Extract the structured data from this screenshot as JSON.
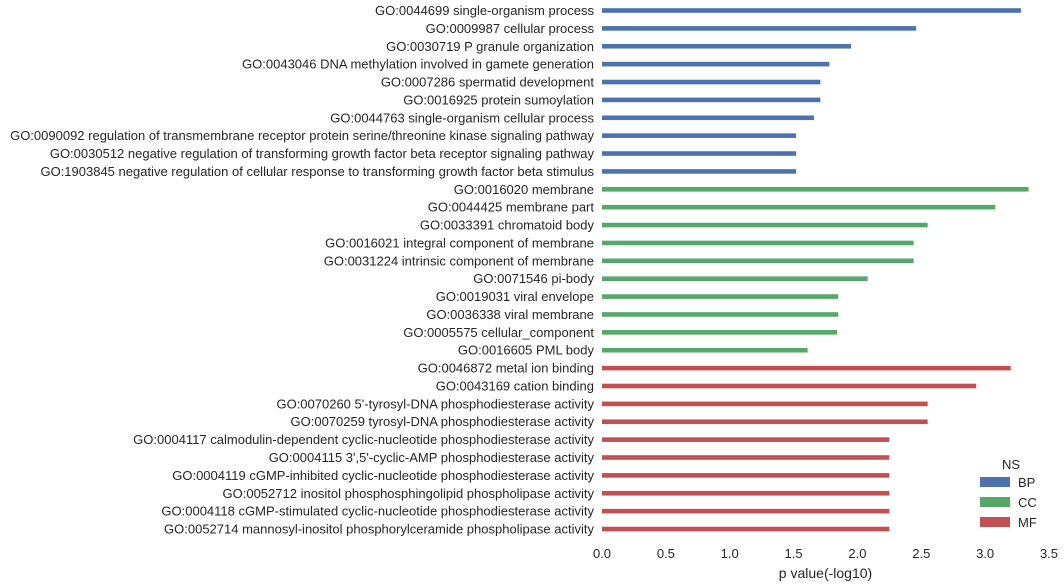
{
  "chart_data": {
    "type": "bar",
    "orientation": "horizontal",
    "xlabel": "p value(-log10)",
    "ylabel": "",
    "xlim": [
      0,
      3.5
    ],
    "xticks": [
      "0.0",
      "0.5",
      "1.0",
      "1.5",
      "2.0",
      "2.5",
      "3.0",
      "3.5"
    ],
    "grid": false,
    "legend": {
      "title": "NS",
      "placement": "bottom-right",
      "entries": [
        {
          "name": "BP",
          "color": "#4c72b0"
        },
        {
          "name": "CC",
          "color": "#55a868"
        },
        {
          "name": "MF",
          "color": "#c44e52"
        }
      ]
    },
    "categories": [
      {
        "label": "GO:0044699 single-organism process",
        "value": 3.28,
        "ns": "BP"
      },
      {
        "label": "GO:0009987 cellular process",
        "value": 2.46,
        "ns": "BP"
      },
      {
        "label": "GO:0030719 P granule organization",
        "value": 1.95,
        "ns": "BP"
      },
      {
        "label": "GO:0043046 DNA methylation involved in gamete generation",
        "value": 1.78,
        "ns": "BP"
      },
      {
        "label": "GO:0007286 spermatid development",
        "value": 1.71,
        "ns": "BP"
      },
      {
        "label": "GO:0016925 protein sumoylation",
        "value": 1.71,
        "ns": "BP"
      },
      {
        "label": "GO:0044763 single-organism cellular process",
        "value": 1.66,
        "ns": "BP"
      },
      {
        "label": "GO:0090092 regulation of transmembrane receptor protein serine/threonine kinase signaling pathway",
        "value": 1.52,
        "ns": "BP"
      },
      {
        "label": "GO:0030512 negative regulation of transforming growth factor beta receptor signaling pathway",
        "value": 1.52,
        "ns": "BP"
      },
      {
        "label": "GO:1903845 negative regulation of cellular response to transforming growth factor beta stimulus",
        "value": 1.52,
        "ns": "BP"
      },
      {
        "label": "GO:0016020 membrane",
        "value": 3.34,
        "ns": "CC"
      },
      {
        "label": "GO:0044425 membrane part",
        "value": 3.08,
        "ns": "CC"
      },
      {
        "label": "GO:0033391 chromatoid body",
        "value": 2.55,
        "ns": "CC"
      },
      {
        "label": "GO:0016021 integral component of membrane",
        "value": 2.44,
        "ns": "CC"
      },
      {
        "label": "GO:0031224 intrinsic component of membrane",
        "value": 2.44,
        "ns": "CC"
      },
      {
        "label": "GO:0071546 pi-body",
        "value": 2.08,
        "ns": "CC"
      },
      {
        "label": "GO:0019031 viral envelope",
        "value": 1.85,
        "ns": "CC"
      },
      {
        "label": "GO:0036338 viral membrane",
        "value": 1.85,
        "ns": "CC"
      },
      {
        "label": "GO:0005575 cellular_component",
        "value": 1.84,
        "ns": "CC"
      },
      {
        "label": "GO:0016605 PML body",
        "value": 1.61,
        "ns": "CC"
      },
      {
        "label": "GO:0046872 metal ion binding",
        "value": 3.2,
        "ns": "MF"
      },
      {
        "label": "GO:0043169 cation binding",
        "value": 2.93,
        "ns": "MF"
      },
      {
        "label": "GO:0070260 5'-tyrosyl-DNA phosphodiesterase activity",
        "value": 2.55,
        "ns": "MF"
      },
      {
        "label": "GO:0070259 tyrosyl-DNA phosphodiesterase activity",
        "value": 2.55,
        "ns": "MF"
      },
      {
        "label": "GO:0004117 calmodulin-dependent cyclic-nucleotide phosphodiesterase activity",
        "value": 2.25,
        "ns": "MF"
      },
      {
        "label": "GO:0004115 3',5'-cyclic-AMP phosphodiesterase activity",
        "value": 2.25,
        "ns": "MF"
      },
      {
        "label": "GO:0004119 cGMP-inhibited cyclic-nucleotide phosphodiesterase activity",
        "value": 2.25,
        "ns": "MF"
      },
      {
        "label": "GO:0052712 inositol phosphosphingolipid phospholipase activity",
        "value": 2.25,
        "ns": "MF"
      },
      {
        "label": "GO:0004118 cGMP-stimulated cyclic-nucleotide phosphodiesterase activity",
        "value": 2.25,
        "ns": "MF"
      },
      {
        "label": "GO:0052714 mannosyl-inositol phosphorylceramide phospholipase activity",
        "value": 2.25,
        "ns": "MF"
      }
    ]
  }
}
